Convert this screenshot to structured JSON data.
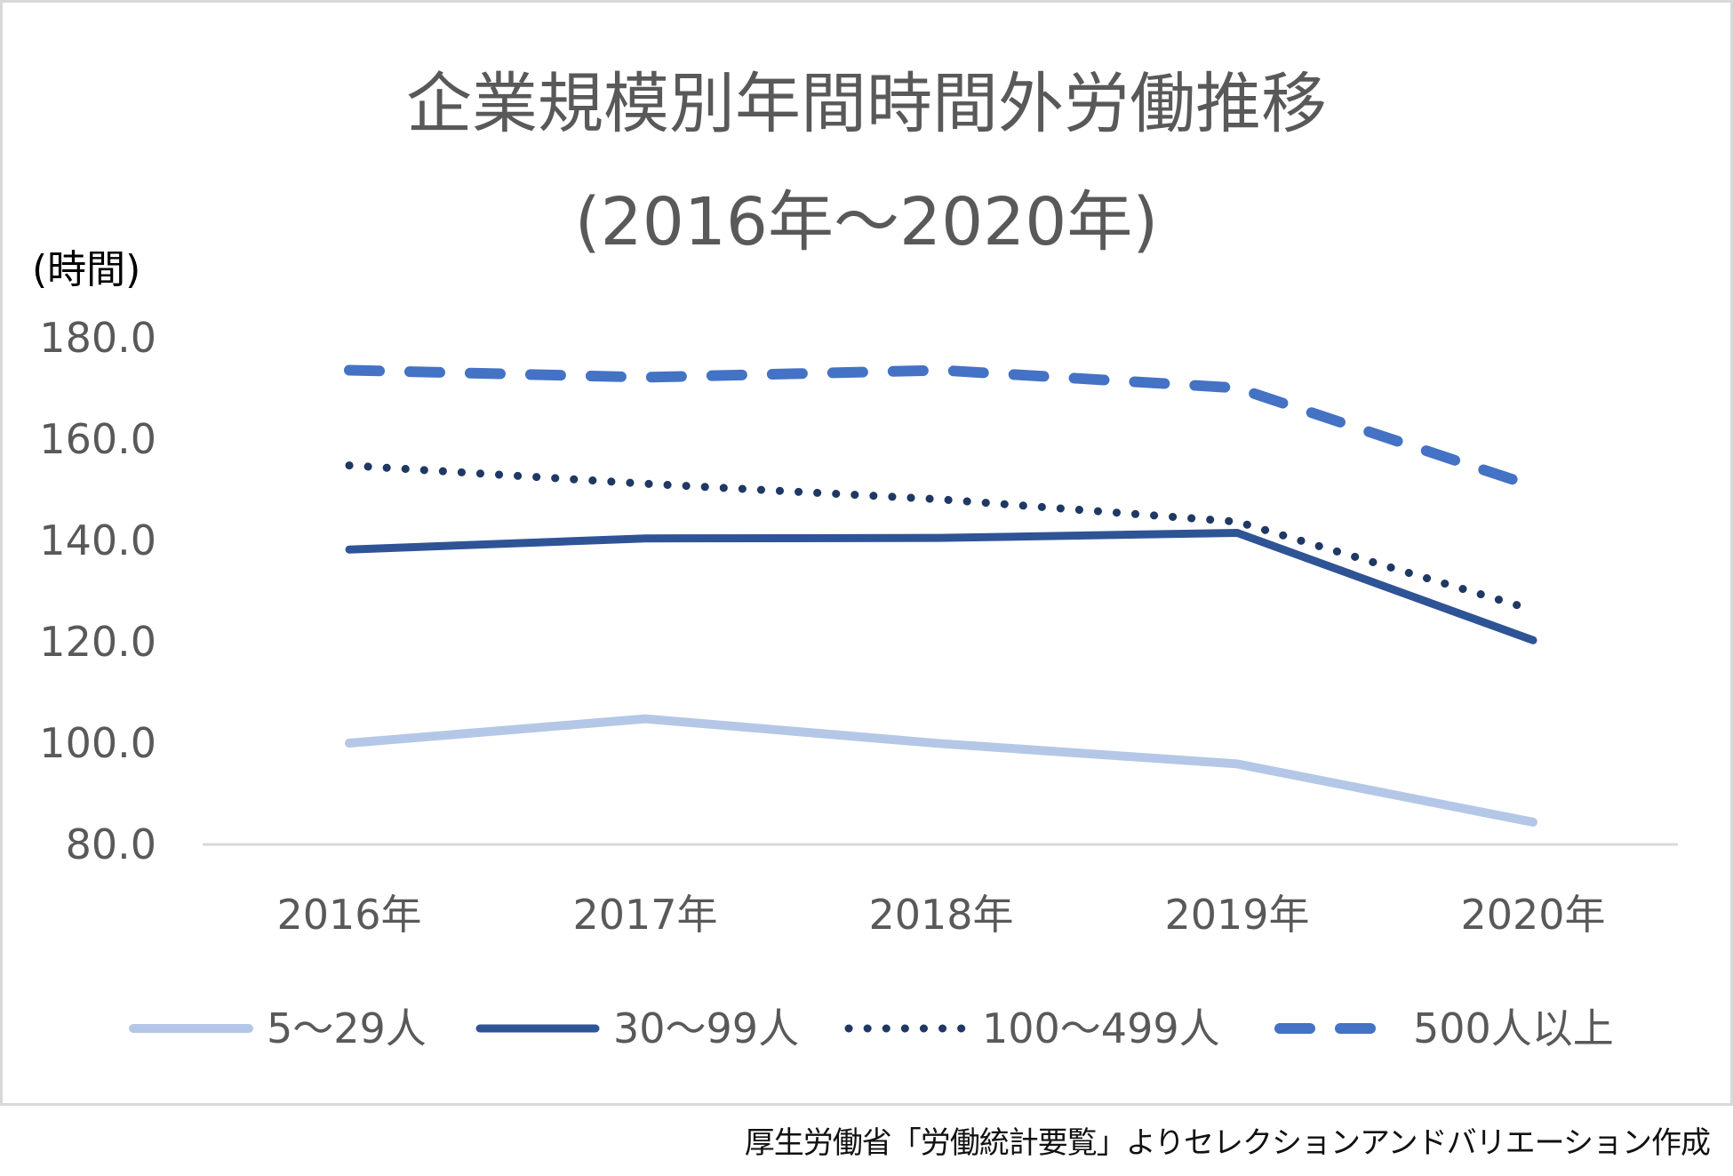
{
  "chart_data": {
    "type": "line",
    "title": "企業規模別年間時間外労働推移",
    "subtitle": "(2016年～2020年)",
    "ylabel": "(時間)",
    "xlabel": "",
    "categories": [
      "2016年",
      "2017年",
      "2018年",
      "2019年",
      "2020年"
    ],
    "ylim": [
      80,
      180
    ],
    "yticks": [
      "180.0",
      "160.0",
      "140.0",
      "120.0",
      "100.0",
      "80.0"
    ],
    "grid": false,
    "legend_position": "bottom",
    "series": [
      {
        "name": "5～29人",
        "values": [
          100.0,
          104.8,
          99.9,
          95.9,
          84.4
        ],
        "color": "#b4c7e7",
        "style": "solid"
      },
      {
        "name": "30～99人",
        "values": [
          138.2,
          140.4,
          140.5,
          141.5,
          120.3
        ],
        "color": "#2f5496",
        "style": "solid"
      },
      {
        "name": "100～499人",
        "values": [
          154.8,
          151.2,
          148.1,
          143.7,
          126.3
        ],
        "color": "#1f3864",
        "style": "dotted"
      },
      {
        "name": "500人以上",
        "values": [
          173.6,
          172.2,
          173.6,
          170.1,
          150.7
        ],
        "color": "#4472c4",
        "style": "dashed"
      }
    ]
  },
  "source_note": "厚生労働省「労働統計要覧」よりセレクションアンドバリエーション作成"
}
